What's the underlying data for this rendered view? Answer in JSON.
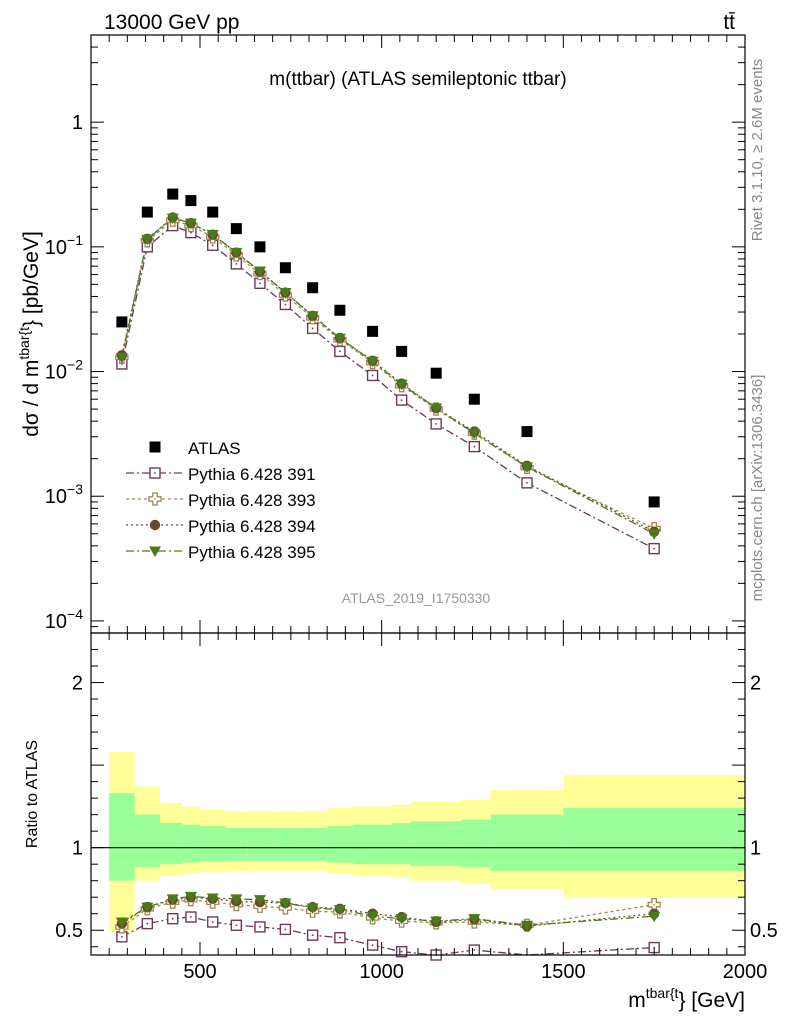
{
  "header": {
    "beam": "13000 GeV pp",
    "process": "tt̄"
  },
  "side_labels": {
    "rivet": "Rivet 3.1.10, ≥ 2.6M events",
    "mcplots": "mcplots.cern.ch [arXiv:1306.3436]"
  },
  "chart_data": {
    "type": "scatter",
    "title": "m(ttbar) (ATLAS semileptonic ttbar)",
    "analysis_id": "ATLAS_2019_I1750330",
    "xlabel_main": "m",
    "xlabel_sup": "tbar{t",
    "xlabel_tail": "} [GeV]",
    "ylabel_main_a": "dσ / d m",
    "ylabel_main_sup": "tbar{t",
    "ylabel_main_b": "} [pb/GeV]",
    "ylabel_ratio": "Ratio to ATLAS",
    "xlim": [
      200,
      2000
    ],
    "ylim_main": [
      8e-05,
      5
    ],
    "ylim_ratio": [
      0.35,
      2.3
    ],
    "y_scale_main": "log",
    "x_ticks": [
      {
        "value": 500,
        "label": "500"
      },
      {
        "value": 1000,
        "label": "1000"
      },
      {
        "value": 1500,
        "label": "1500"
      },
      {
        "value": 2000,
        "label": "2000"
      }
    ],
    "y_ticks_main": [
      {
        "value": 1,
        "base": "1",
        "exp": ""
      },
      {
        "value": 0.1,
        "base": "10",
        "exp": "−1"
      },
      {
        "value": 0.01,
        "base": "10",
        "exp": "−2"
      },
      {
        "value": 0.001,
        "base": "10",
        "exp": "−3"
      },
      {
        "value": 0.0001,
        "base": "10",
        "exp": "−4"
      }
    ],
    "y_ticks_ratio": [
      {
        "value": 0.5,
        "label": "0.5"
      },
      {
        "value": 1,
        "label": "1"
      },
      {
        "value": 2,
        "label": "2"
      }
    ],
    "legend_position": "middle-left",
    "x": [
      285,
      355,
      425,
      475,
      535,
      600,
      665,
      735,
      810,
      885,
      975,
      1055,
      1150,
      1255,
      1400,
      1750
    ],
    "bin_edges": [
      250,
      320,
      390,
      450,
      500,
      570,
      630,
      700,
      770,
      850,
      920,
      1030,
      1080,
      1220,
      1300,
      1500,
      2000
    ],
    "data": {
      "name": "ATLAS",
      "color": "#000000",
      "values": [
        0.025,
        0.19,
        0.265,
        0.235,
        0.19,
        0.14,
        0.1,
        0.068,
        0.047,
        0.031,
        0.021,
        0.0145,
        0.0097,
        0.006,
        0.0033,
        0.0009
      ]
    },
    "band_yellow": [
      [
        0.49,
        1.58
      ],
      [
        0.8,
        1.37
      ],
      [
        0.83,
        1.27
      ],
      [
        0.84,
        1.25
      ],
      [
        0.85,
        1.23
      ],
      [
        0.855,
        1.22
      ],
      [
        0.86,
        1.22
      ],
      [
        0.86,
        1.22
      ],
      [
        0.86,
        1.22
      ],
      [
        0.84,
        1.24
      ],
      [
        0.83,
        1.25
      ],
      [
        0.82,
        1.26
      ],
      [
        0.8,
        1.28
      ],
      [
        0.78,
        1.29
      ],
      [
        0.75,
        1.35
      ],
      [
        0.7,
        1.44
      ]
    ],
    "band_green": [
      [
        0.8,
        1.33
      ],
      [
        0.88,
        1.2
      ],
      [
        0.9,
        1.15
      ],
      [
        0.91,
        1.14
      ],
      [
        0.915,
        1.13
      ],
      [
        0.92,
        1.12
      ],
      [
        0.92,
        1.12
      ],
      [
        0.92,
        1.12
      ],
      [
        0.92,
        1.12
      ],
      [
        0.91,
        1.13
      ],
      [
        0.9,
        1.14
      ],
      [
        0.9,
        1.15
      ],
      [
        0.89,
        1.16
      ],
      [
        0.88,
        1.17
      ],
      [
        0.86,
        1.2
      ],
      [
        0.86,
        1.24
      ]
    ],
    "series": [
      {
        "name": "Pythia 6.428 391",
        "color": "#6b3a5a",
        "marker": "open-square",
        "dash": "8,3,2,3",
        "values": [
          0.0115,
          0.1,
          0.148,
          0.13,
          0.103,
          0.073,
          0.051,
          0.0345,
          0.0222,
          0.0145,
          0.0093,
          0.0059,
          0.0038,
          0.0025,
          0.00128,
          0.00038
        ],
        "ratio": [
          0.46,
          0.54,
          0.57,
          0.58,
          0.55,
          0.53,
          0.52,
          0.505,
          0.47,
          0.455,
          0.41,
          0.37,
          0.35,
          0.38,
          0.32,
          0.395
        ]
      },
      {
        "name": "Pythia 6.428 393",
        "color": "#9c8a55",
        "marker": "open-cross",
        "dash": "3,3",
        "values": [
          0.013,
          0.112,
          0.163,
          0.148,
          0.12,
          0.086,
          0.061,
          0.041,
          0.027,
          0.018,
          0.0118,
          0.0077,
          0.005,
          0.0032,
          0.0017,
          0.00055
        ],
        "ratio": [
          0.52,
          0.63,
          0.67,
          0.685,
          0.67,
          0.655,
          0.645,
          0.635,
          0.615,
          0.61,
          0.575,
          0.555,
          0.545,
          0.55,
          0.53,
          0.655
        ]
      },
      {
        "name": "Pythia 6.428 394",
        "color": "#6b4a2a",
        "marker": "filled-circle",
        "dash": "2,3",
        "values": [
          0.0135,
          0.116,
          0.172,
          0.155,
          0.125,
          0.09,
          0.063,
          0.043,
          0.028,
          0.0185,
          0.0122,
          0.008,
          0.0051,
          0.0033,
          0.00175,
          0.00052
        ],
        "ratio": [
          0.54,
          0.64,
          0.685,
          0.7,
          0.69,
          0.675,
          0.67,
          0.665,
          0.64,
          0.63,
          0.6,
          0.58,
          0.55,
          0.565,
          0.525,
          0.6
        ]
      },
      {
        "name": "Pythia 6.428 395",
        "color": "#4a7a1a",
        "marker": "filled-triangle-down",
        "dash": "8,3,2,3",
        "values": [
          0.013,
          0.115,
          0.17,
          0.155,
          0.126,
          0.09,
          0.064,
          0.043,
          0.028,
          0.0185,
          0.0121,
          0.0079,
          0.0051,
          0.0032,
          0.00172,
          0.0005
        ],
        "ratio": [
          0.55,
          0.64,
          0.69,
          0.705,
          0.695,
          0.69,
          0.685,
          0.665,
          0.635,
          0.625,
          0.585,
          0.57,
          0.555,
          0.57,
          0.53,
          0.585
        ]
      }
    ]
  }
}
